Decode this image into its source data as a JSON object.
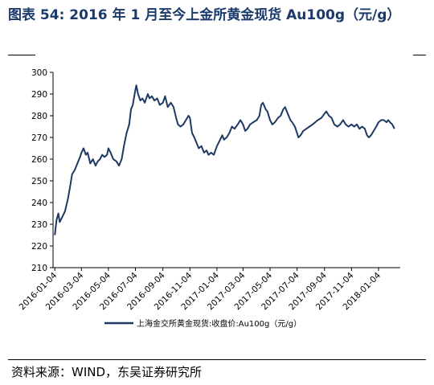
{
  "figure": {
    "title": "图表 54: 2016 年 1 月至今上金所黄金现货 Au100g（元/g）",
    "source": "资料来源：WIND，东吴证券研究所"
  },
  "colors": {
    "title": "#1b3a6b",
    "series": "#1f3864"
  },
  "chart_data": {
    "type": "line",
    "title": "",
    "xlabel": "",
    "ylabel": "",
    "ylim": [
      210,
      300
    ],
    "yticks": [
      210,
      220,
      230,
      240,
      250,
      260,
      270,
      280,
      290,
      300
    ],
    "xticks": [
      "2016-01-04",
      "2016-03-04",
      "2016-05-04",
      "2016-07-04",
      "2016-09-04",
      "2016-11-04",
      "2017-01-04",
      "2017-03-04",
      "2017-05-04",
      "2017-07-04",
      "2017-09-04",
      "2017-11-04",
      "2018-01-04"
    ],
    "grid": false,
    "legend": "bottom",
    "series": [
      {
        "name": "上海金交所黄金现货:收盘价:Au100g（元/g）",
        "points": [
          [
            "2016-01-04",
            225
          ],
          [
            "2016-01-08",
            232
          ],
          [
            "2016-01-12",
            235
          ],
          [
            "2016-01-15",
            231
          ],
          [
            "2016-01-20",
            233
          ],
          [
            "2016-01-27",
            236
          ],
          [
            "2016-02-03",
            242
          ],
          [
            "2016-02-08",
            248
          ],
          [
            "2016-02-12",
            253
          ],
          [
            "2016-02-18",
            255
          ],
          [
            "2016-02-24",
            258
          ],
          [
            "2016-03-01",
            261
          ],
          [
            "2016-03-04",
            263
          ],
          [
            "2016-03-09",
            265
          ],
          [
            "2016-03-14",
            262
          ],
          [
            "2016-03-18",
            263
          ],
          [
            "2016-03-24",
            258
          ],
          [
            "2016-03-30",
            260
          ],
          [
            "2016-04-05",
            257
          ],
          [
            "2016-04-10",
            259
          ],
          [
            "2016-04-15",
            260
          ],
          [
            "2016-04-20",
            262
          ],
          [
            "2016-04-25",
            261
          ],
          [
            "2016-05-01",
            262
          ],
          [
            "2016-05-04",
            265
          ],
          [
            "2016-05-09",
            263
          ],
          [
            "2016-05-15",
            260
          ],
          [
            "2016-05-22",
            259
          ],
          [
            "2016-05-28",
            257
          ],
          [
            "2016-06-03",
            260
          ],
          [
            "2016-06-08",
            266
          ],
          [
            "2016-06-14",
            272
          ],
          [
            "2016-06-20",
            276
          ],
          [
            "2016-06-24",
            283
          ],
          [
            "2016-06-28",
            285
          ],
          [
            "2016-07-04",
            292
          ],
          [
            "2016-07-06",
            294
          ],
          [
            "2016-07-10",
            290
          ],
          [
            "2016-07-15",
            287
          ],
          [
            "2016-07-20",
            288
          ],
          [
            "2016-07-25",
            286
          ],
          [
            "2016-08-01",
            290
          ],
          [
            "2016-08-05",
            288
          ],
          [
            "2016-08-10",
            289
          ],
          [
            "2016-08-16",
            287
          ],
          [
            "2016-08-22",
            288
          ],
          [
            "2016-08-28",
            285
          ],
          [
            "2016-09-04",
            286
          ],
          [
            "2016-09-09",
            289
          ],
          [
            "2016-09-15",
            284
          ],
          [
            "2016-09-22",
            286
          ],
          [
            "2016-09-28",
            284
          ],
          [
            "2016-10-04",
            279
          ],
          [
            "2016-10-08",
            276
          ],
          [
            "2016-10-14",
            275
          ],
          [
            "2016-10-20",
            276
          ],
          [
            "2016-10-26",
            278
          ],
          [
            "2016-11-01",
            280
          ],
          [
            "2016-11-04",
            279
          ],
          [
            "2016-11-09",
            272
          ],
          [
            "2016-11-14",
            270
          ],
          [
            "2016-11-18",
            268
          ],
          [
            "2016-11-24",
            265
          ],
          [
            "2016-11-30",
            266
          ],
          [
            "2016-12-06",
            263
          ],
          [
            "2016-12-12",
            264
          ],
          [
            "2016-12-16",
            262
          ],
          [
            "2016-12-22",
            263
          ],
          [
            "2016-12-28",
            262
          ],
          [
            "2017-01-04",
            266
          ],
          [
            "2017-01-09",
            268
          ],
          [
            "2017-01-16",
            271
          ],
          [
            "2017-01-20",
            269
          ],
          [
            "2017-01-26",
            270
          ],
          [
            "2017-02-01",
            272
          ],
          [
            "2017-02-07",
            275
          ],
          [
            "2017-02-13",
            274
          ],
          [
            "2017-02-20",
            276
          ],
          [
            "2017-02-26",
            278
          ],
          [
            "2017-03-04",
            276
          ],
          [
            "2017-03-09",
            273
          ],
          [
            "2017-03-14",
            274
          ],
          [
            "2017-03-20",
            276
          ],
          [
            "2017-03-27",
            277
          ],
          [
            "2017-04-04",
            278
          ],
          [
            "2017-04-10",
            280
          ],
          [
            "2017-04-14",
            285
          ],
          [
            "2017-04-18",
            286
          ],
          [
            "2017-04-24",
            283
          ],
          [
            "2017-04-28",
            282
          ],
          [
            "2017-05-04",
            278
          ],
          [
            "2017-05-09",
            276
          ],
          [
            "2017-05-15",
            277
          ],
          [
            "2017-05-22",
            279
          ],
          [
            "2017-05-28",
            280
          ],
          [
            "2017-06-03",
            283
          ],
          [
            "2017-06-07",
            284
          ],
          [
            "2017-06-13",
            281
          ],
          [
            "2017-06-19",
            278
          ],
          [
            "2017-06-23",
            277
          ],
          [
            "2017-06-29",
            275
          ],
          [
            "2017-07-04",
            272
          ],
          [
            "2017-07-07",
            270
          ],
          [
            "2017-07-12",
            271
          ],
          [
            "2017-07-18",
            273
          ],
          [
            "2017-07-25",
            274
          ],
          [
            "2017-08-01",
            275
          ],
          [
            "2017-08-08",
            276
          ],
          [
            "2017-08-14",
            277
          ],
          [
            "2017-08-20",
            278
          ],
          [
            "2017-08-28",
            279
          ],
          [
            "2017-09-04",
            281
          ],
          [
            "2017-09-08",
            282
          ],
          [
            "2017-09-14",
            280
          ],
          [
            "2017-09-20",
            279
          ],
          [
            "2017-09-26",
            276
          ],
          [
            "2017-10-03",
            275
          ],
          [
            "2017-10-09",
            276
          ],
          [
            "2017-10-16",
            278
          ],
          [
            "2017-10-22",
            276
          ],
          [
            "2017-10-28",
            275
          ],
          [
            "2017-11-04",
            276
          ],
          [
            "2017-11-10",
            275
          ],
          [
            "2017-11-16",
            276
          ],
          [
            "2017-11-22",
            274
          ],
          [
            "2017-11-28",
            275
          ],
          [
            "2017-12-04",
            274
          ],
          [
            "2017-12-09",
            271
          ],
          [
            "2017-12-13",
            270
          ],
          [
            "2017-12-18",
            271
          ],
          [
            "2017-12-24",
            273
          ],
          [
            "2017-12-30",
            275
          ],
          [
            "2018-01-04",
            277
          ],
          [
            "2018-01-10",
            278
          ],
          [
            "2018-01-16",
            278
          ],
          [
            "2018-01-22",
            277
          ],
          [
            "2018-01-26",
            278
          ],
          [
            "2018-01-30",
            277
          ],
          [
            "2018-02-04",
            276
          ],
          [
            "2018-02-09",
            274
          ]
        ]
      }
    ]
  }
}
